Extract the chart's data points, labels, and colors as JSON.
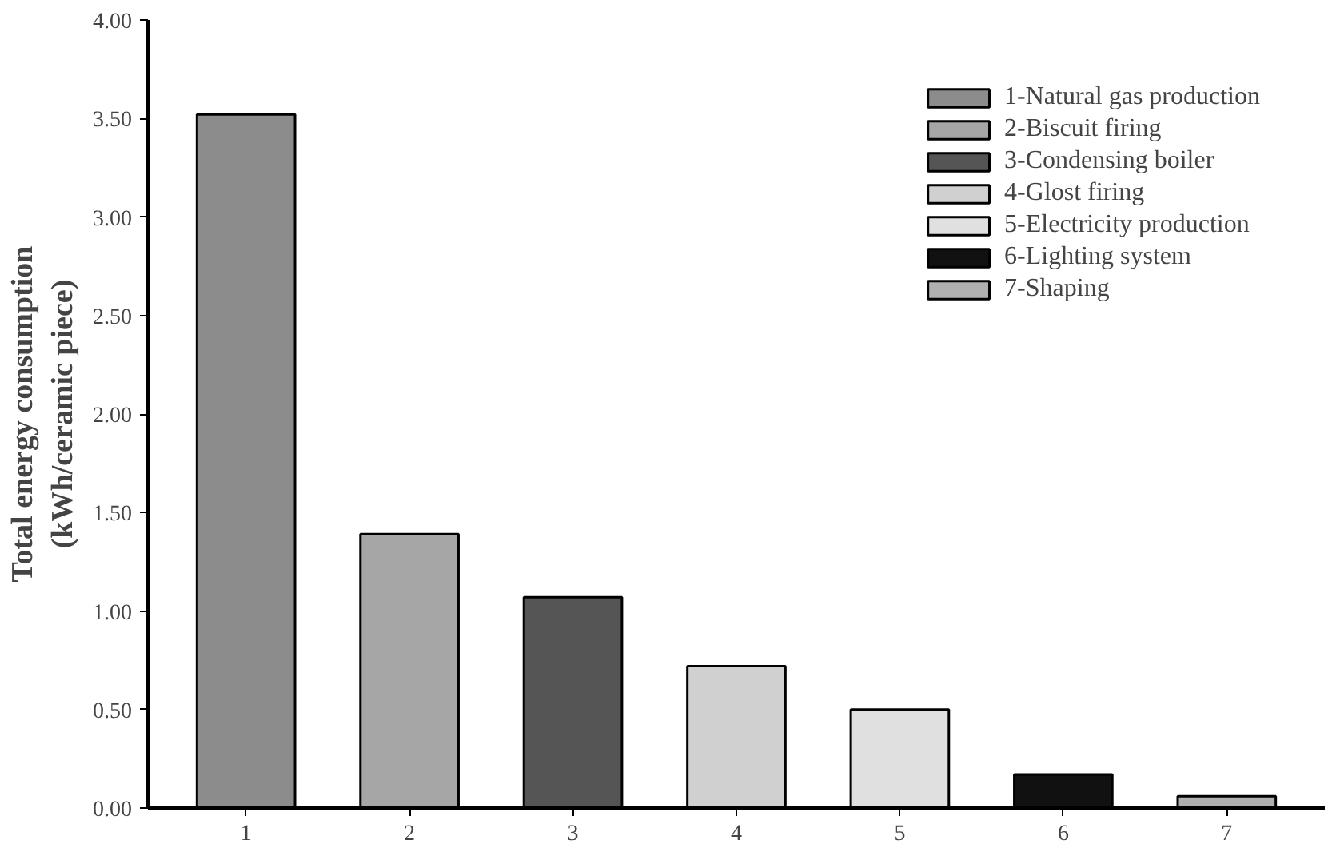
{
  "chart_data": {
    "type": "bar",
    "ylabel": "Total energy consumption\n(kWh/ceramic piece)",
    "categories": [
      "1",
      "2",
      "3",
      "4",
      "5",
      "6",
      "7"
    ],
    "series": [
      {
        "name": "1-Natural gas production",
        "color": "#8c8c8c",
        "values": [
          3.52,
          null,
          null,
          null,
          null,
          null,
          null
        ]
      },
      {
        "name": "2-Biscuit firing",
        "color": "#a6a6a6",
        "values": [
          null,
          1.39,
          null,
          null,
          null,
          null,
          null
        ]
      },
      {
        "name": "3-Condensing boiler",
        "color": "#555555",
        "values": [
          null,
          null,
          1.07,
          null,
          null,
          null,
          null
        ]
      },
      {
        "name": "4-Glost firing",
        "color": "#d0d0d0",
        "values": [
          null,
          null,
          null,
          0.72,
          null,
          null,
          null
        ]
      },
      {
        "name": "5-Electricity production",
        "color": "#e0e0e0",
        "values": [
          null,
          null,
          null,
          null,
          0.5,
          null,
          null
        ]
      },
      {
        "name": "6-Lighting system",
        "color": "#111111",
        "values": [
          null,
          null,
          null,
          null,
          null,
          0.17,
          null
        ]
      },
      {
        "name": "7-Shaping",
        "color": "#b0b0b0",
        "values": [
          null,
          null,
          null,
          null,
          null,
          null,
          0.06
        ]
      }
    ],
    "ylim": [
      0,
      4
    ],
    "yticks": [
      {
        "value": 0,
        "label": "0.00"
      },
      {
        "value": 0.5,
        "label": "0.50"
      },
      {
        "value": 1,
        "label": "1.00"
      },
      {
        "value": 1.5,
        "label": "1.50"
      },
      {
        "value": 2,
        "label": "2.00"
      },
      {
        "value": 2.5,
        "label": "2.50"
      },
      {
        "value": 3,
        "label": "3.00"
      },
      {
        "value": 3.5,
        "label": "3.50"
      },
      {
        "value": 4,
        "label": "4.00"
      }
    ],
    "grid": false,
    "legend": "top right"
  }
}
